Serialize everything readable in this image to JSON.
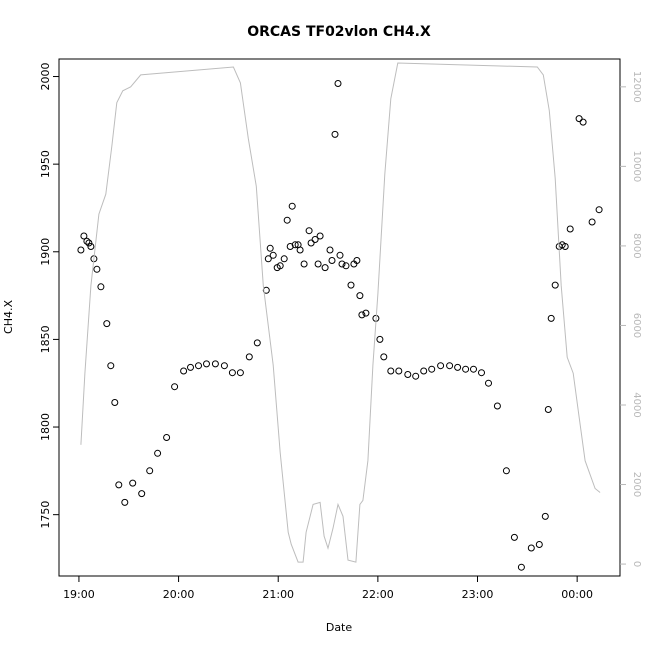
{
  "chart_data": {
    "type": "scatter",
    "title": "ORCAS TF02vlon CH4.X",
    "xlabel": "Date",
    "ylabel": "CH4.X",
    "xlim": [
      18.8,
      24.43
    ],
    "ylim": [
      1715,
      2010
    ],
    "y2lim": [
      -300,
      12700
    ],
    "x_ticks": [
      {
        "value": 19,
        "label": "19:00"
      },
      {
        "value": 20,
        "label": "20:00"
      },
      {
        "value": 21,
        "label": "21:00"
      },
      {
        "value": 22,
        "label": "22:00"
      },
      {
        "value": 23,
        "label": "23:00"
      },
      {
        "value": 24,
        "label": "00:00"
      }
    ],
    "y_ticks": [
      1750,
      1800,
      1850,
      1900,
      1950,
      2000
    ],
    "y2_ticks": [
      0,
      2000,
      4000,
      6000,
      8000,
      10000,
      12000
    ],
    "grid": false,
    "series": [
      {
        "marker": "open-circle",
        "color": "#000000",
        "points": [
          [
            19.02,
            1901
          ],
          [
            19.05,
            1909
          ],
          [
            19.08,
            1906
          ],
          [
            19.1,
            1905
          ],
          [
            19.12,
            1903
          ],
          [
            19.15,
            1896
          ],
          [
            19.18,
            1890
          ],
          [
            19.22,
            1880
          ],
          [
            19.28,
            1859
          ],
          [
            19.32,
            1835
          ],
          [
            19.36,
            1814
          ],
          [
            19.4,
            1767
          ],
          [
            19.46,
            1757
          ],
          [
            19.54,
            1768
          ],
          [
            19.63,
            1762
          ],
          [
            19.71,
            1775
          ],
          [
            19.79,
            1785
          ],
          [
            19.88,
            1794
          ],
          [
            19.96,
            1823
          ],
          [
            20.05,
            1832
          ],
          [
            20.12,
            1834
          ],
          [
            20.2,
            1835
          ],
          [
            20.28,
            1836
          ],
          [
            20.37,
            1836
          ],
          [
            20.46,
            1835
          ],
          [
            20.54,
            1831
          ],
          [
            20.62,
            1831
          ],
          [
            20.71,
            1840
          ],
          [
            20.79,
            1848
          ],
          [
            20.88,
            1878
          ],
          [
            20.9,
            1896
          ],
          [
            20.92,
            1902
          ],
          [
            20.95,
            1898
          ],
          [
            20.99,
            1891
          ],
          [
            21.02,
            1892
          ],
          [
            21.06,
            1896
          ],
          [
            21.09,
            1918
          ],
          [
            21.12,
            1903
          ],
          [
            21.14,
            1926
          ],
          [
            21.17,
            1904
          ],
          [
            21.2,
            1904
          ],
          [
            21.22,
            1901
          ],
          [
            21.26,
            1893
          ],
          [
            21.31,
            1912
          ],
          [
            21.33,
            1905
          ],
          [
            21.37,
            1907
          ],
          [
            21.4,
            1893
          ],
          [
            21.42,
            1909
          ],
          [
            21.47,
            1891
          ],
          [
            21.52,
            1901
          ],
          [
            21.54,
            1895
          ],
          [
            21.57,
            1967
          ],
          [
            21.6,
            1996
          ],
          [
            21.62,
            1898
          ],
          [
            21.64,
            1893
          ],
          [
            21.68,
            1892
          ],
          [
            21.73,
            1881
          ],
          [
            21.76,
            1893
          ],
          [
            21.79,
            1895
          ],
          [
            21.82,
            1875
          ],
          [
            21.84,
            1864
          ],
          [
            21.88,
            1865
          ],
          [
            21.98,
            1862
          ],
          [
            22.02,
            1850
          ],
          [
            22.06,
            1840
          ],
          [
            22.13,
            1832
          ],
          [
            22.21,
            1832
          ],
          [
            22.3,
            1830
          ],
          [
            22.38,
            1829
          ],
          [
            22.46,
            1832
          ],
          [
            22.54,
            1833
          ],
          [
            22.63,
            1835
          ],
          [
            22.72,
            1835
          ],
          [
            22.8,
            1834
          ],
          [
            22.88,
            1833
          ],
          [
            22.96,
            1833
          ],
          [
            23.04,
            1831
          ],
          [
            23.11,
            1825
          ],
          [
            23.2,
            1812
          ],
          [
            23.29,
            1775
          ],
          [
            23.37,
            1737
          ],
          [
            23.44,
            1720
          ],
          [
            23.54,
            1731
          ],
          [
            23.62,
            1733
          ],
          [
            23.68,
            1749
          ],
          [
            23.71,
            1810
          ],
          [
            23.74,
            1862
          ],
          [
            23.78,
            1881
          ],
          [
            23.82,
            1903
          ],
          [
            23.85,
            1904
          ],
          [
            23.88,
            1903
          ],
          [
            23.93,
            1913
          ],
          [
            24.02,
            1976
          ],
          [
            24.06,
            1974
          ],
          [
            24.15,
            1917
          ],
          [
            24.22,
            1924
          ]
        ]
      },
      {
        "axis": "right",
        "marker": "line",
        "color": "#bdbdbd",
        "points": [
          [
            19.02,
            3000
          ],
          [
            19.06,
            4800
          ],
          [
            19.12,
            7000
          ],
          [
            19.2,
            8800
          ],
          [
            19.27,
            9300
          ],
          [
            19.33,
            10500
          ],
          [
            19.38,
            11600
          ],
          [
            19.44,
            11900
          ],
          [
            19.52,
            12000
          ],
          [
            19.62,
            12300
          ],
          [
            20.55,
            12500
          ],
          [
            20.62,
            12100
          ],
          [
            20.7,
            10700
          ],
          [
            20.78,
            9500
          ],
          [
            20.85,
            7000
          ],
          [
            20.95,
            5000
          ],
          [
            21.02,
            2800
          ],
          [
            21.1,
            800
          ],
          [
            21.13,
            500
          ],
          [
            21.2,
            50
          ],
          [
            21.25,
            50
          ],
          [
            21.28,
            800
          ],
          [
            21.35,
            1500
          ],
          [
            21.42,
            1550
          ],
          [
            21.46,
            700
          ],
          [
            21.5,
            400
          ],
          [
            21.55,
            900
          ],
          [
            21.6,
            1500
          ],
          [
            21.65,
            1200
          ],
          [
            21.7,
            100
          ],
          [
            21.78,
            50
          ],
          [
            21.82,
            1500
          ],
          [
            21.85,
            1600
          ],
          [
            21.9,
            2600
          ],
          [
            21.95,
            5000
          ],
          [
            22,
            6800
          ],
          [
            22.07,
            9800
          ],
          [
            22.13,
            11700
          ],
          [
            22.2,
            12600
          ],
          [
            23.6,
            12500
          ],
          [
            23.66,
            12300
          ],
          [
            23.72,
            11400
          ],
          [
            23.78,
            9700
          ],
          [
            23.84,
            7000
          ],
          [
            23.9,
            5200
          ],
          [
            23.96,
            4800
          ],
          [
            24.02,
            3700
          ],
          [
            24.08,
            2600
          ],
          [
            24.18,
            1900
          ],
          [
            24.23,
            1800
          ]
        ]
      }
    ]
  }
}
